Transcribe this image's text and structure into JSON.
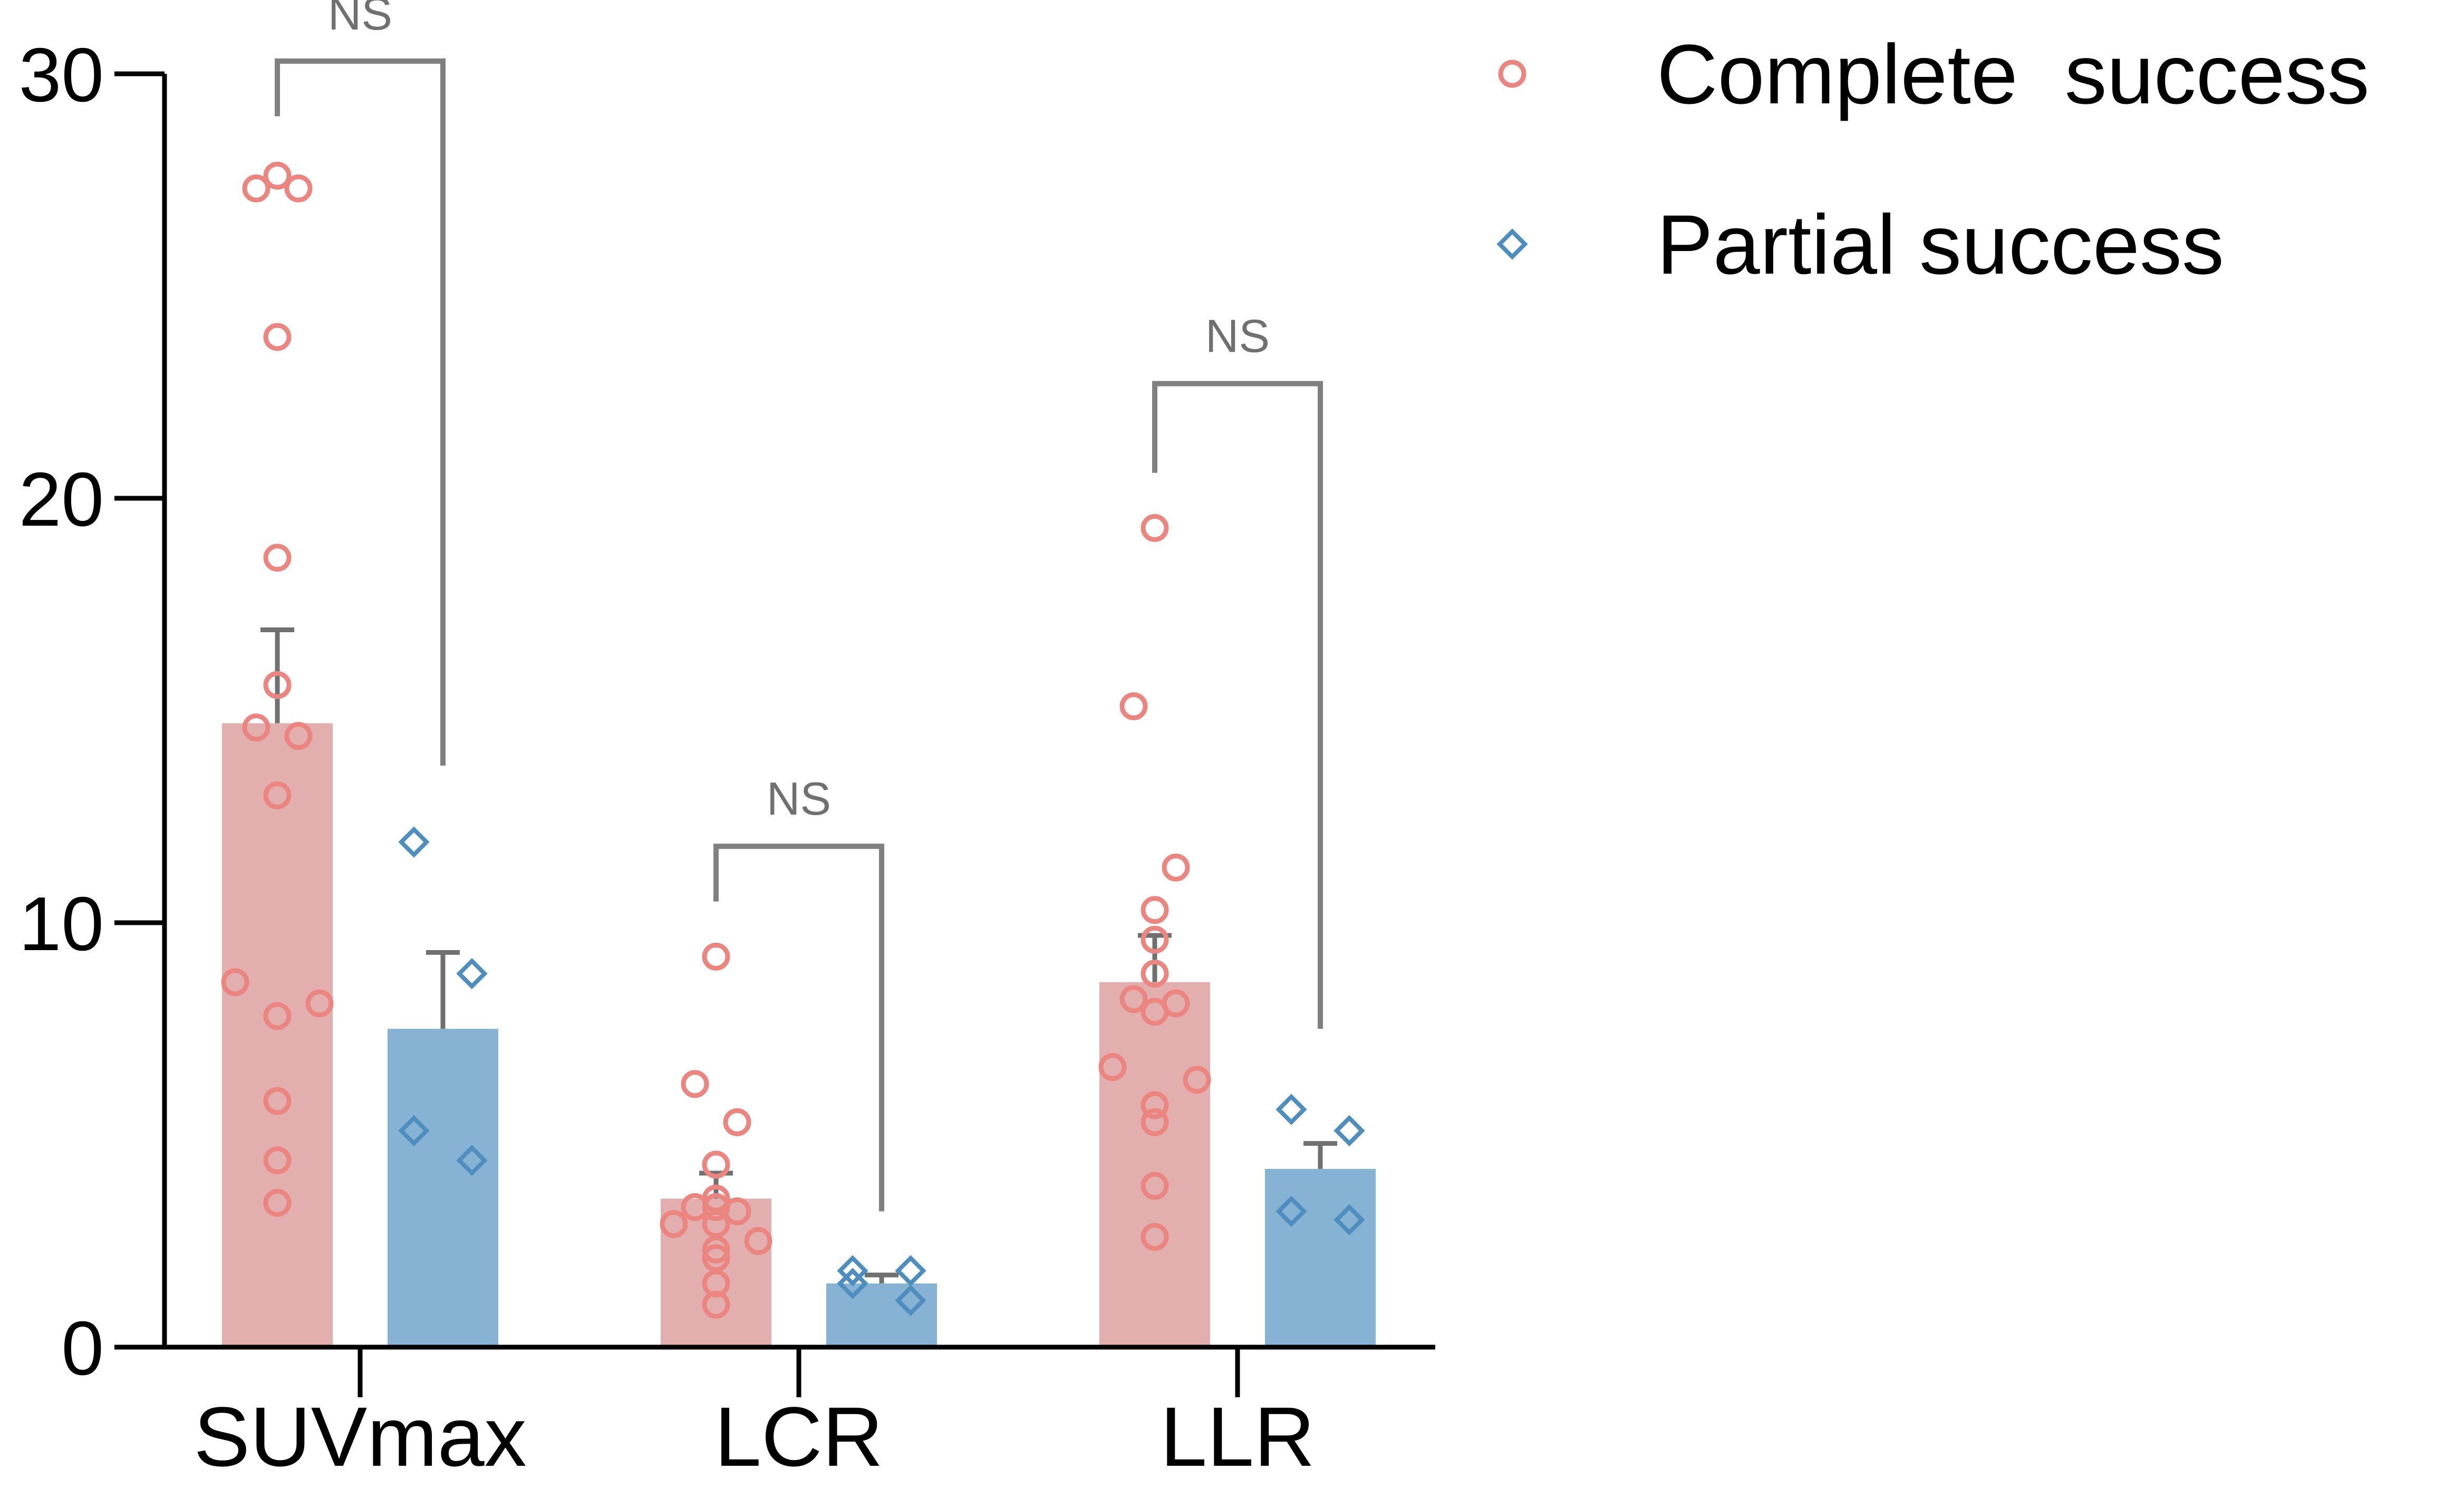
{
  "chart_data": {
    "type": "bar",
    "title": "",
    "xlabel": "",
    "ylabel": "",
    "ylim": [
      0,
      30
    ],
    "yticks": [
      0,
      10,
      20,
      30
    ],
    "ytick_labels": [
      "0",
      "10",
      "20",
      "30"
    ],
    "grid": false,
    "legend_position": "top-right",
    "categories": [
      "SUVmax",
      "LCR",
      "LLR"
    ],
    "series": [
      {
        "name": "Complete  success",
        "marker": "circle",
        "color": "#EA8580",
        "bar_color": "#E3AFAE",
        "values": [
          14.7,
          3.5,
          8.6
        ],
        "errors": [
          2.2,
          0.6,
          1.1
        ],
        "points": [
          [
            27.6,
            27.3,
            27.3,
            23.8,
            18.6,
            15.6,
            14.6,
            14.4,
            13.0,
            8.6,
            8.1,
            7.8,
            5.8,
            4.4,
            3.4
          ],
          [
            9.2,
            6.2,
            5.3,
            4.3,
            3.5,
            3.3,
            3.3,
            3.2,
            2.9,
            2.9,
            2.5,
            2.3,
            2.1,
            1.5,
            1.0
          ],
          [
            19.3,
            15.1,
            11.3,
            10.3,
            9.6,
            8.8,
            8.2,
            8.1,
            7.9,
            6.6,
            6.3,
            5.7,
            5.3,
            3.8,
            2.6
          ]
        ]
      },
      {
        "name": "Partial success",
        "marker": "diamond",
        "color": "#4D8EBE",
        "bar_color": "#86B2D3",
        "values": [
          7.5,
          1.5,
          4.2
        ],
        "errors": [
          1.8,
          0.2,
          0.6
        ],
        "points": [
          [
            11.9,
            8.8,
            5.1,
            4.4
          ],
          [
            1.8,
            1.8,
            1.5,
            1.1
          ],
          [
            5.6,
            5.1,
            3.2,
            3.0
          ]
        ]
      }
    ],
    "significance": [
      {
        "category": "SUVmax",
        "label": "NS",
        "bracket_y": 30.3,
        "left_bottom": 29.0,
        "right_bottom": 13.7
      },
      {
        "category": "LCR",
        "label": "NS",
        "bracket_y": 11.8,
        "left_bottom": 10.5,
        "right_bottom": 3.2
      },
      {
        "category": "LLR",
        "label": "NS",
        "bracket_y": 22.7,
        "left_bottom": 20.6,
        "right_bottom": 7.5
      }
    ]
  }
}
